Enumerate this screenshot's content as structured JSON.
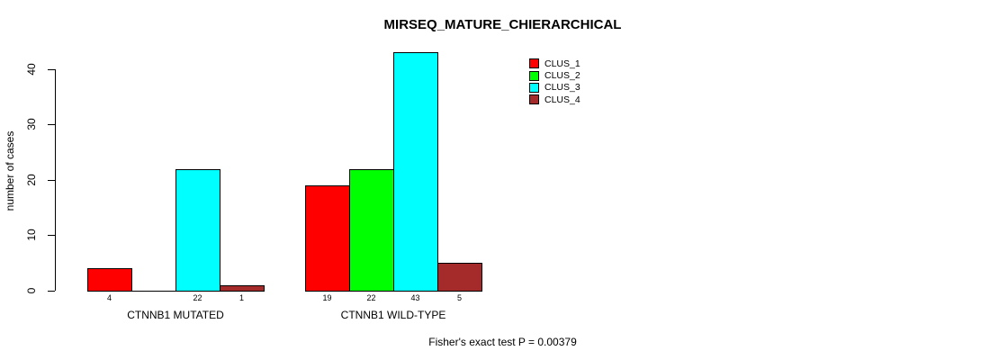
{
  "title": "MIRSEQ_MATURE_CHIERARCHICAL",
  "footer": "Fisher's exact test P = 0.00379",
  "y_axis": {
    "label": "number of cases",
    "ticks": [
      0,
      10,
      20,
      30,
      40
    ]
  },
  "legend": {
    "items": [
      {
        "label": "CLUS_1",
        "color": "#FF0000"
      },
      {
        "label": "CLUS_2",
        "color": "#00FF00"
      },
      {
        "label": "CLUS_3",
        "color": "#00FFFF"
      },
      {
        "label": "CLUS_4",
        "color": "#A52A2A"
      }
    ]
  },
  "chart_data": {
    "type": "bar",
    "title": "MIRSEQ_MATURE_CHIERARCHICAL",
    "categories": [
      "CTNNB1 MUTATED",
      "CTNNB1 WILD-TYPE"
    ],
    "series": [
      {
        "name": "CLUS_1",
        "color": "#FF0000",
        "values": [
          4,
          19
        ]
      },
      {
        "name": "CLUS_2",
        "color": "#00FF00",
        "values": [
          0,
          22
        ]
      },
      {
        "name": "CLUS_3",
        "color": "#00FFFF",
        "values": [
          22,
          43
        ]
      },
      {
        "name": "CLUS_4",
        "color": "#A52A2A",
        "values": [
          1,
          5
        ]
      }
    ],
    "xlabel": "",
    "ylabel": "number of cases",
    "ylim": [
      0,
      43
    ],
    "yticks": [
      0,
      10,
      20,
      30,
      40
    ],
    "bar_value_labels_shown": true,
    "zero_value_labels_hidden": true,
    "grid": false,
    "legend_position": "top-right",
    "annotation": "Fisher's exact test P = 0.00379"
  }
}
